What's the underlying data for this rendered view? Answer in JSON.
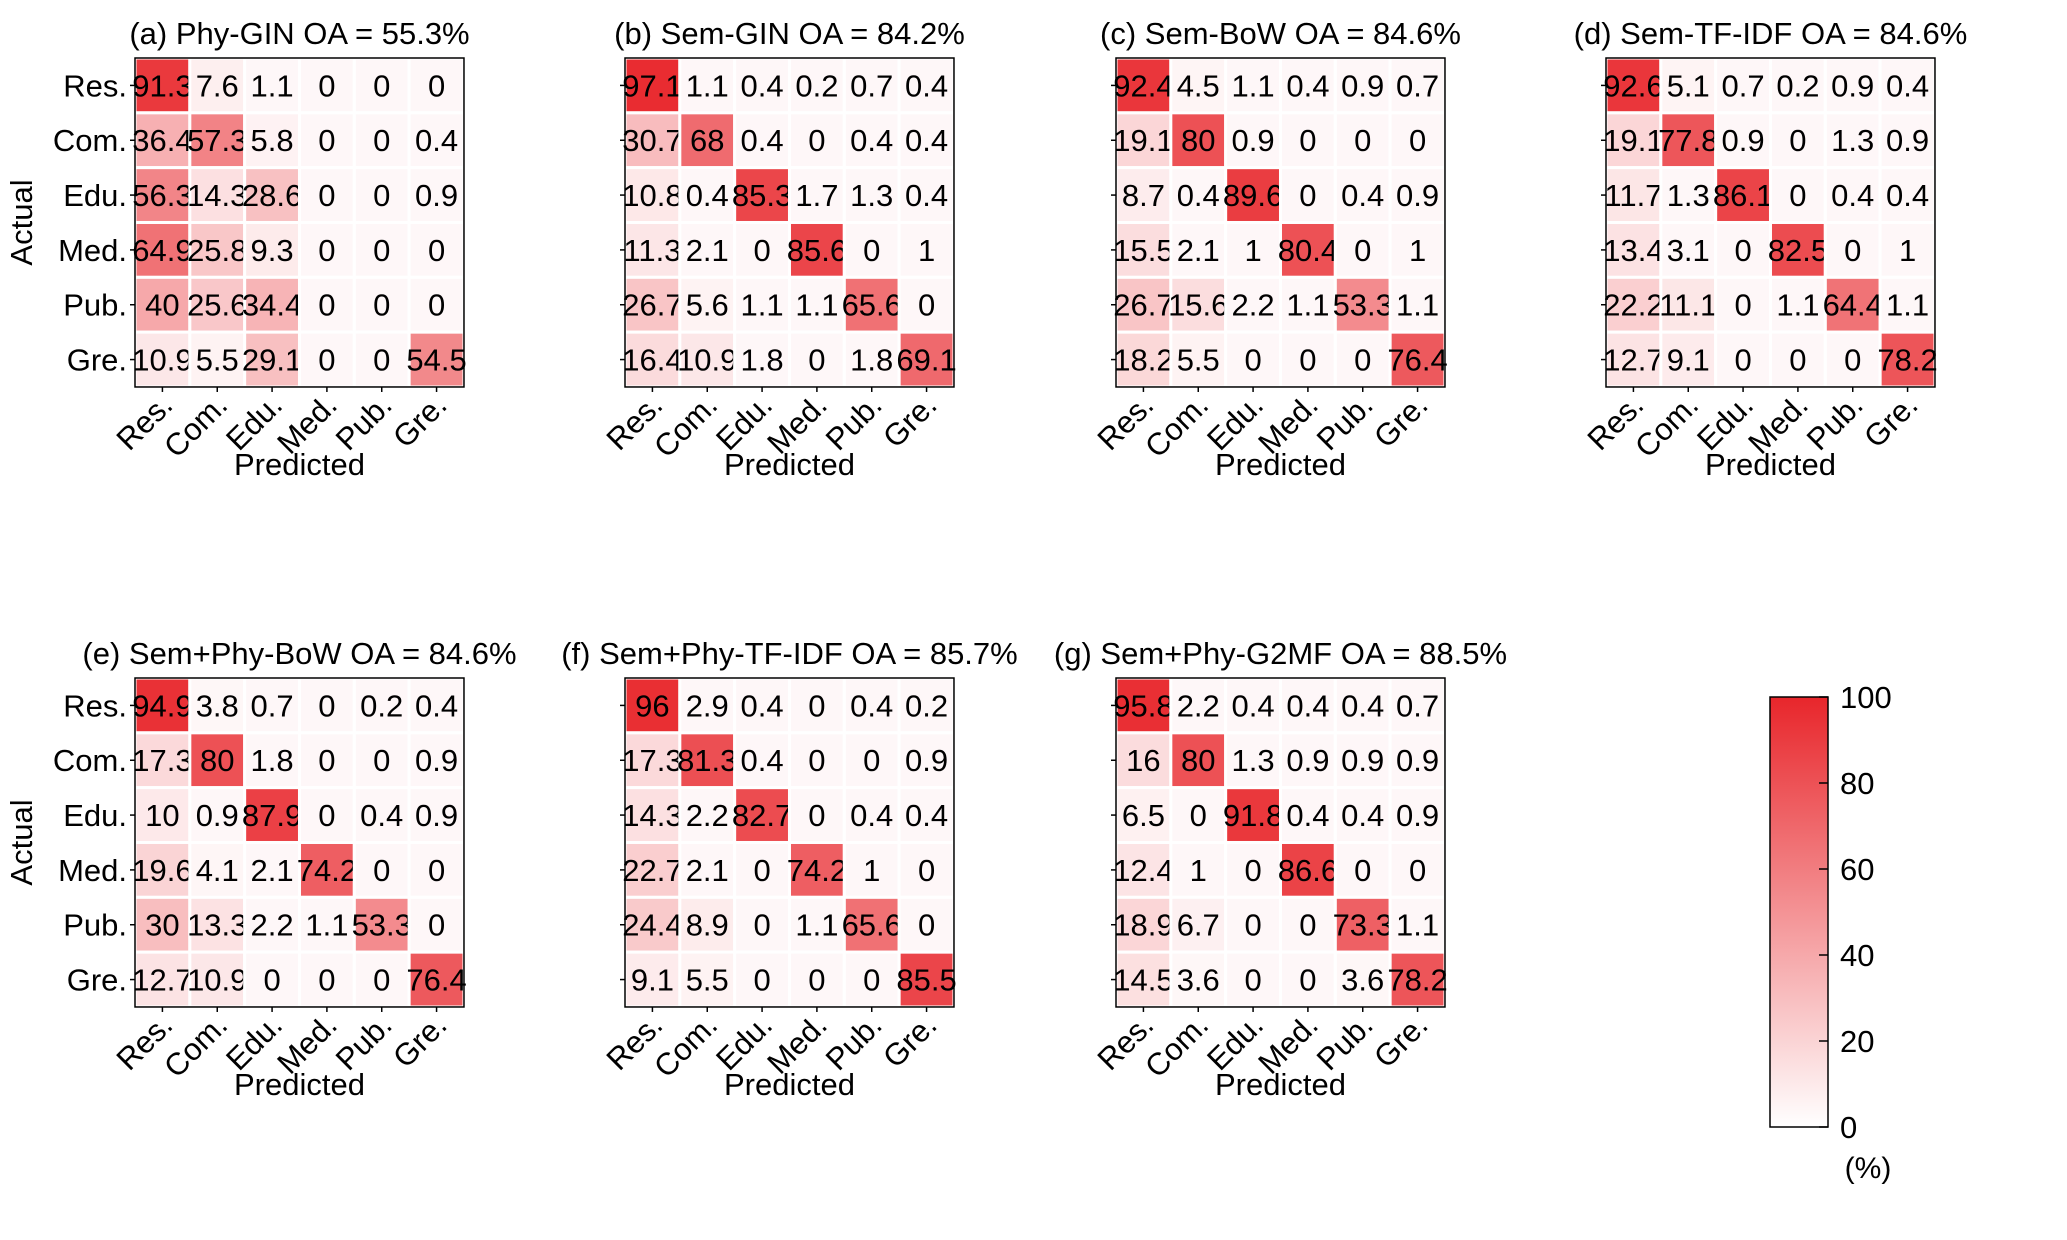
{
  "labels": {
    "ylabel": "Actual",
    "xlabel": "Predicted"
  },
  "categories": [
    "Res.",
    "Com.",
    "Edu.",
    "Med.",
    "Pub.",
    "Gre."
  ],
  "colorbar": {
    "ticks": [
      "100",
      "80",
      "60",
      "40",
      "20",
      "0"
    ],
    "unit": "(%)",
    "range": [
      0,
      100
    ],
    "color_low": "#ffffff",
    "color_high": "#e8262b"
  },
  "chart_data": [
    {
      "type": "heatmap",
      "title": "(a) Phy-GIN OA = 55.3%",
      "xlabel": "Predicted",
      "ylabel": "Actual",
      "rows": [
        "Res.",
        "Com.",
        "Edu.",
        "Med.",
        "Pub.",
        "Gre."
      ],
      "cols": [
        "Res.",
        "Com.",
        "Edu.",
        "Med.",
        "Pub.",
        "Gre."
      ],
      "values": [
        [
          91.3,
          7.6,
          1.1,
          0,
          0,
          0
        ],
        [
          36.4,
          57.3,
          5.8,
          0,
          0,
          0.4
        ],
        [
          56.3,
          14.3,
          28.6,
          0,
          0,
          0.9
        ],
        [
          64.9,
          25.8,
          9.3,
          0,
          0,
          0
        ],
        [
          40,
          25.6,
          34.4,
          0,
          0,
          0
        ],
        [
          10.9,
          5.5,
          29.1,
          0,
          0,
          54.5
        ]
      ]
    },
    {
      "type": "heatmap",
      "title": "(b) Sem-GIN OA = 84.2%",
      "xlabel": "Predicted",
      "ylabel": "",
      "rows": [
        "Res.",
        "Com.",
        "Edu.",
        "Med.",
        "Pub.",
        "Gre."
      ],
      "cols": [
        "Res.",
        "Com.",
        "Edu.",
        "Med.",
        "Pub.",
        "Gre."
      ],
      "values": [
        [
          97.1,
          1.1,
          0.4,
          0.2,
          0.7,
          0.4
        ],
        [
          30.7,
          68,
          0.4,
          0,
          0.4,
          0.4
        ],
        [
          10.8,
          0.4,
          85.3,
          1.7,
          1.3,
          0.4
        ],
        [
          11.3,
          2.1,
          0,
          85.6,
          0,
          1
        ],
        [
          26.7,
          5.6,
          1.1,
          1.1,
          65.6,
          0
        ],
        [
          16.4,
          10.9,
          1.8,
          0,
          1.8,
          69.1
        ]
      ]
    },
    {
      "type": "heatmap",
      "title": "(c) Sem-BoW OA = 84.6%",
      "xlabel": "Predicted",
      "ylabel": "",
      "rows": [
        "Res.",
        "Com.",
        "Edu.",
        "Med.",
        "Pub.",
        "Gre."
      ],
      "cols": [
        "Res.",
        "Com.",
        "Edu.",
        "Med.",
        "Pub.",
        "Gre."
      ],
      "values": [
        [
          92.4,
          4.5,
          1.1,
          0.4,
          0.9,
          0.7
        ],
        [
          19.1,
          80,
          0.9,
          0,
          0,
          0
        ],
        [
          8.7,
          0.4,
          89.6,
          0,
          0.4,
          0.9
        ],
        [
          15.5,
          2.1,
          1,
          80.4,
          0,
          1
        ],
        [
          26.7,
          15.6,
          2.2,
          1.1,
          53.3,
          1.1
        ],
        [
          18.2,
          5.5,
          0,
          0,
          0,
          76.4
        ]
      ]
    },
    {
      "type": "heatmap",
      "title": "(d) Sem-TF-IDF OA = 84.6%",
      "xlabel": "Predicted",
      "ylabel": "",
      "rows": [
        "Res.",
        "Com.",
        "Edu.",
        "Med.",
        "Pub.",
        "Gre."
      ],
      "cols": [
        "Res.",
        "Com.",
        "Edu.",
        "Med.",
        "Pub.",
        "Gre."
      ],
      "values": [
        [
          92.6,
          5.1,
          0.7,
          0.2,
          0.9,
          0.4
        ],
        [
          19.1,
          77.8,
          0.9,
          0,
          1.3,
          0.9
        ],
        [
          11.7,
          1.3,
          86.1,
          0,
          0.4,
          0.4
        ],
        [
          13.4,
          3.1,
          0,
          82.5,
          0,
          1
        ],
        [
          22.2,
          11.1,
          0,
          1.1,
          64.4,
          1.1
        ],
        [
          12.7,
          9.1,
          0,
          0,
          0,
          78.2
        ]
      ]
    },
    {
      "type": "heatmap",
      "title": "(e) Sem+Phy-BoW OA = 84.6%",
      "xlabel": "Predicted",
      "ylabel": "Actual",
      "rows": [
        "Res.",
        "Com.",
        "Edu.",
        "Med.",
        "Pub.",
        "Gre."
      ],
      "cols": [
        "Res.",
        "Com.",
        "Edu.",
        "Med.",
        "Pub.",
        "Gre."
      ],
      "values": [
        [
          94.9,
          3.8,
          0.7,
          0,
          0.2,
          0.4
        ],
        [
          17.3,
          80,
          1.8,
          0,
          0,
          0.9
        ],
        [
          10,
          0.9,
          87.9,
          0,
          0.4,
          0.9
        ],
        [
          19.6,
          4.1,
          2.1,
          74.2,
          0,
          0
        ],
        [
          30,
          13.3,
          2.2,
          1.1,
          53.3,
          0
        ],
        [
          12.7,
          10.9,
          0,
          0,
          0,
          76.4
        ]
      ]
    },
    {
      "type": "heatmap",
      "title": "(f) Sem+Phy-TF-IDF OA = 85.7%",
      "xlabel": "Predicted",
      "ylabel": "",
      "rows": [
        "Res.",
        "Com.",
        "Edu.",
        "Med.",
        "Pub.",
        "Gre."
      ],
      "cols": [
        "Res.",
        "Com.",
        "Edu.",
        "Med.",
        "Pub.",
        "Gre."
      ],
      "values": [
        [
          96,
          2.9,
          0.4,
          0,
          0.4,
          0.2
        ],
        [
          17.3,
          81.3,
          0.4,
          0,
          0,
          0.9
        ],
        [
          14.3,
          2.2,
          82.7,
          0,
          0.4,
          0.4
        ],
        [
          22.7,
          2.1,
          0,
          74.2,
          1,
          0
        ],
        [
          24.4,
          8.9,
          0,
          1.1,
          65.6,
          0
        ],
        [
          9.1,
          5.5,
          0,
          0,
          0,
          85.5
        ]
      ]
    },
    {
      "type": "heatmap",
      "title": "(g) Sem+Phy-G2MF OA = 88.5%",
      "xlabel": "Predicted",
      "ylabel": "",
      "rows": [
        "Res.",
        "Com.",
        "Edu.",
        "Med.",
        "Pub.",
        "Gre."
      ],
      "cols": [
        "Res.",
        "Com.",
        "Edu.",
        "Med.",
        "Pub.",
        "Gre."
      ],
      "values": [
        [
          95.8,
          2.2,
          0.4,
          0.4,
          0.4,
          0.7
        ],
        [
          16,
          80,
          1.3,
          0.9,
          0.9,
          0.9
        ],
        [
          6.5,
          0,
          91.8,
          0.4,
          0.4,
          0.9
        ],
        [
          12.4,
          1,
          0,
          86.6,
          0,
          0
        ],
        [
          18.9,
          6.7,
          0,
          0,
          73.3,
          1.1
        ],
        [
          14.5,
          3.6,
          0,
          0,
          3.6,
          78.2
        ]
      ]
    }
  ]
}
